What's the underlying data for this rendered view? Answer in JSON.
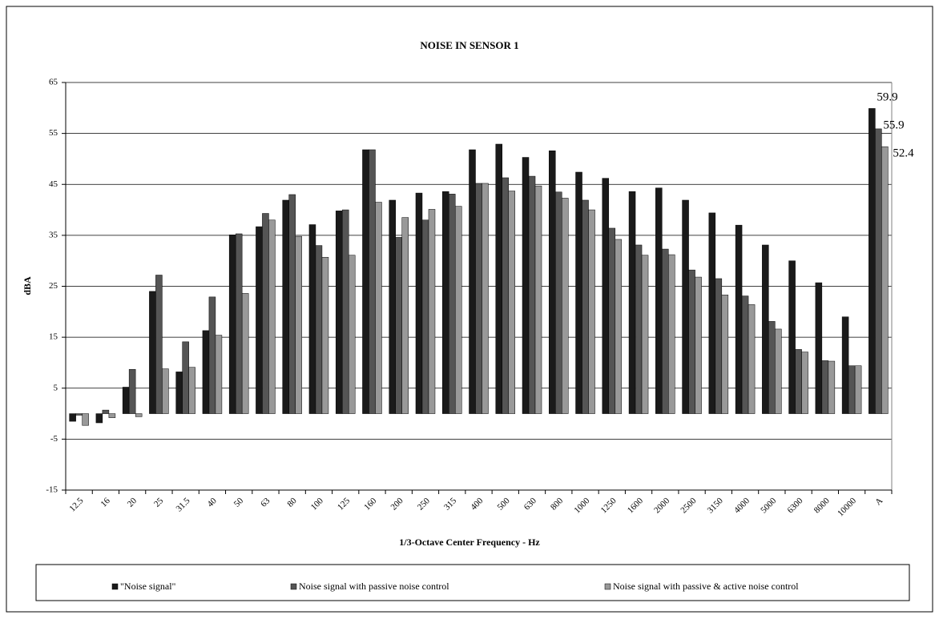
{
  "chart_data": {
    "type": "bar",
    "title": "NOISE IN SENSOR 1",
    "x_label": "1/3-Octave Center Frequency - Hz",
    "y_label": "dBA",
    "categories": [
      "12.5",
      "16",
      "20",
      "25",
      "31.5",
      "40",
      "50",
      "63",
      "80",
      "100",
      "125",
      "160",
      "200",
      "250",
      "315",
      "400",
      "500",
      "630",
      "800",
      "1000",
      "1250",
      "1600",
      "2000",
      "2500",
      "3150",
      "4000",
      "5000",
      "6300",
      "8000",
      "10000",
      "A"
    ],
    "series": [
      {
        "name": "\"Noise signal\"",
        "color": "#1a1a1a",
        "values": [
          -1.5,
          -1.8,
          5.2,
          24,
          8.2,
          16.3,
          35.1,
          36.7,
          41.9,
          37.1,
          39.8,
          51.8,
          41.9,
          43.3,
          43.6,
          51.8,
          52.9,
          50.3,
          51.6,
          47.4,
          46.2,
          43.6,
          44.3,
          41.9,
          39.4,
          37,
          33.1,
          30,
          25.7,
          19,
          59.9
        ],
        "value_labels": [
          null,
          null,
          null,
          null,
          null,
          null,
          null,
          null,
          null,
          null,
          null,
          null,
          null,
          null,
          null,
          null,
          null,
          null,
          null,
          null,
          null,
          null,
          null,
          null,
          null,
          null,
          null,
          null,
          null,
          null,
          "59.9"
        ]
      },
      {
        "name": "Noise signal with passive noise control",
        "color": "#555555",
        "values": [
          -0.3,
          0.7,
          8.7,
          27.2,
          14.1,
          22.9,
          35.3,
          39.3,
          43,
          33,
          40,
          51.8,
          34.6,
          38,
          43.1,
          45.2,
          46.3,
          46.6,
          43.5,
          41.9,
          36.4,
          33.1,
          32.3,
          28.2,
          26.5,
          23.1,
          18.1,
          12.6,
          10.4,
          9.4,
          55.9
        ],
        "value_labels": [
          null,
          null,
          null,
          null,
          null,
          null,
          null,
          null,
          null,
          null,
          null,
          null,
          null,
          null,
          null,
          null,
          null,
          null,
          null,
          null,
          null,
          null,
          null,
          null,
          null,
          null,
          null,
          null,
          null,
          null,
          "55.9"
        ]
      },
      {
        "name": "Noise signal with passive & active noise control",
        "color": "#999999",
        "values": [
          -2.3,
          -0.8,
          -0.6,
          8.8,
          9.1,
          15.4,
          23.6,
          38,
          34.8,
          30.7,
          31.1,
          41.5,
          38.5,
          40.1,
          40.7,
          45.2,
          43.7,
          44.7,
          42.3,
          40,
          34.2,
          31.1,
          31.2,
          26.8,
          23.3,
          21.4,
          16.6,
          12.1,
          10.3,
          9.4,
          52.4
        ],
        "value_labels": [
          null,
          null,
          null,
          null,
          null,
          null,
          null,
          null,
          null,
          null,
          null,
          null,
          null,
          null,
          null,
          null,
          null,
          null,
          null,
          null,
          null,
          null,
          null,
          null,
          null,
          null,
          null,
          null,
          null,
          null,
          "52.4"
        ]
      }
    ],
    "ylim": [
      -15,
      65
    ],
    "yticks": [
      -15,
      -5,
      5,
      15,
      25,
      35,
      45,
      55,
      65
    ],
    "grid": true
  }
}
